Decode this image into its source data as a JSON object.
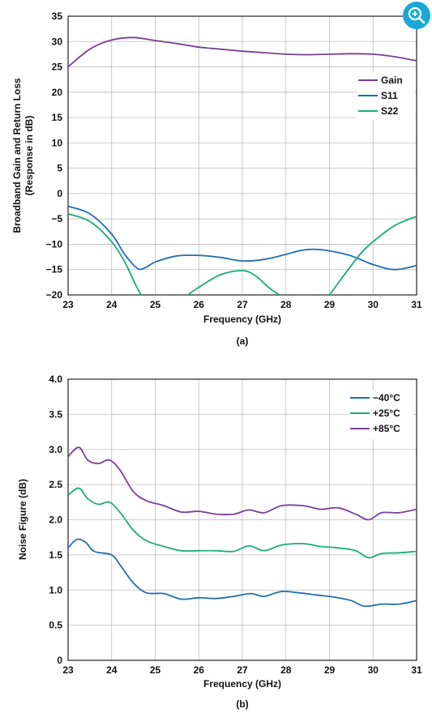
{
  "colors": {
    "gain": "#7b3f98",
    "s11": "#1f6fb2",
    "s22": "#1aab7e",
    "minus40": "#1f6fb2",
    "plus25": "#1aab7e",
    "plus85": "#7b3f98",
    "zoom": "#1aa9d4"
  },
  "zoom_icon": "zoom-in-icon",
  "chart_data": [
    {
      "type": "line",
      "caption": "(a)",
      "xlabel": "Frequency (GHz)",
      "ylabel": "Broadband Gain and Return Loss",
      "ylabel2": "(Response in dB)",
      "xlim": [
        23,
        31
      ],
      "ylim": [
        -20,
        35
      ],
      "xticks": [
        "23",
        "24",
        "25",
        "26",
        "27",
        "28",
        "29",
        "30",
        "31"
      ],
      "yticks": [
        "35",
        "30",
        "25",
        "20",
        "15",
        "10",
        "5",
        "0",
        "−5",
        "−10",
        "−15",
        "−20"
      ],
      "legend": "right",
      "series": [
        {
          "name": "Gain",
          "color_key": "gain",
          "x": [
            23,
            23.5,
            24,
            24.5,
            25,
            25.5,
            26,
            26.5,
            27,
            27.5,
            28,
            28.5,
            29,
            29.5,
            30,
            30.5,
            31
          ],
          "y": [
            25,
            28.5,
            30.3,
            30.8,
            30.2,
            29.6,
            28.9,
            28.5,
            28.1,
            27.8,
            27.5,
            27.4,
            27.5,
            27.6,
            27.5,
            27.0,
            26.2
          ]
        },
        {
          "name": "S11",
          "color_key": "s11",
          "x": [
            23,
            23.5,
            24,
            24.3,
            24.6,
            24.8,
            25,
            25.5,
            26,
            26.5,
            27,
            27.5,
            28,
            28.3,
            28.6,
            29,
            29.5,
            30,
            30.5,
            31
          ],
          "y": [
            -2.5,
            -4,
            -8,
            -12,
            -14.8,
            -14.5,
            -13.5,
            -12.3,
            -12.2,
            -12.6,
            -13.3,
            -13,
            -12,
            -11.3,
            -11,
            -11.3,
            -12.3,
            -14,
            -15,
            -14.2
          ]
        },
        {
          "name": "S22",
          "color_key": "s22",
          "x": [
            23,
            23.5,
            24,
            24.3,
            24.55,
            24.68,
            null,
            25.75,
            26,
            26.5,
            27,
            27.3,
            27.6,
            27.85,
            null,
            29,
            29.3,
            29.7,
            30,
            30.5,
            31
          ],
          "y": [
            -4,
            -5.5,
            -9.5,
            -13.5,
            -18,
            -20,
            null,
            -20,
            -18.5,
            -16,
            -15.2,
            -16.2,
            -18.5,
            -20,
            null,
            -20,
            -16.5,
            -12,
            -9.5,
            -6.3,
            -4.5
          ]
        }
      ]
    },
    {
      "type": "line",
      "caption": "(b)",
      "xlabel": "Frequency (GHz)",
      "ylabel": "Noise Figure (dB)",
      "xlim": [
        23,
        31
      ],
      "ylim": [
        0,
        4.0
      ],
      "xticks": [
        "23",
        "24",
        "25",
        "26",
        "27",
        "28",
        "29",
        "30",
        "31"
      ],
      "yticks": [
        "4.0",
        "3.5",
        "3.0",
        "2.5",
        "2.0",
        "1.5",
        "1.0",
        "0.5",
        "0"
      ],
      "legend": "top-right",
      "series": [
        {
          "name": "−40°C",
          "color_key": "minus40",
          "x": [
            23,
            23.2,
            23.4,
            23.6,
            24,
            24.2,
            24.5,
            24.8,
            25.2,
            25.6,
            26,
            26.4,
            26.8,
            27.2,
            27.5,
            27.9,
            28.3,
            28.7,
            29.1,
            29.5,
            29.8,
            30.2,
            30.6,
            31
          ],
          "y": [
            1.6,
            1.72,
            1.68,
            1.55,
            1.5,
            1.35,
            1.1,
            0.96,
            0.95,
            0.87,
            0.89,
            0.88,
            0.91,
            0.95,
            0.91,
            0.98,
            0.96,
            0.93,
            0.9,
            0.85,
            0.77,
            0.8,
            0.8,
            0.85
          ]
        },
        {
          "name": "+25°C",
          "color_key": "plus25",
          "x": [
            23,
            23.25,
            23.45,
            23.7,
            23.95,
            24.2,
            24.5,
            24.8,
            25.2,
            25.6,
            26,
            26.4,
            26.8,
            27.15,
            27.5,
            27.9,
            28.4,
            28.8,
            29.2,
            29.6,
            29.9,
            30.2,
            30.6,
            31
          ],
          "y": [
            2.35,
            2.45,
            2.3,
            2.22,
            2.25,
            2.1,
            1.85,
            1.7,
            1.62,
            1.56,
            1.56,
            1.56,
            1.55,
            1.63,
            1.56,
            1.64,
            1.66,
            1.62,
            1.6,
            1.56,
            1.46,
            1.52,
            1.53,
            1.55
          ]
        },
        {
          "name": "+85°C",
          "color_key": "plus85",
          "x": [
            23,
            23.25,
            23.45,
            23.7,
            23.95,
            24.2,
            24.5,
            24.8,
            25.2,
            25.6,
            26,
            26.4,
            26.8,
            27.15,
            27.5,
            27.9,
            28.4,
            28.8,
            29.2,
            29.6,
            29.9,
            30.2,
            30.6,
            31
          ],
          "y": [
            2.9,
            3.03,
            2.85,
            2.8,
            2.85,
            2.7,
            2.4,
            2.27,
            2.2,
            2.11,
            2.12,
            2.08,
            2.08,
            2.14,
            2.1,
            2.2,
            2.2,
            2.15,
            2.17,
            2.08,
            2.0,
            2.1,
            2.1,
            2.15
          ]
        }
      ]
    }
  ]
}
